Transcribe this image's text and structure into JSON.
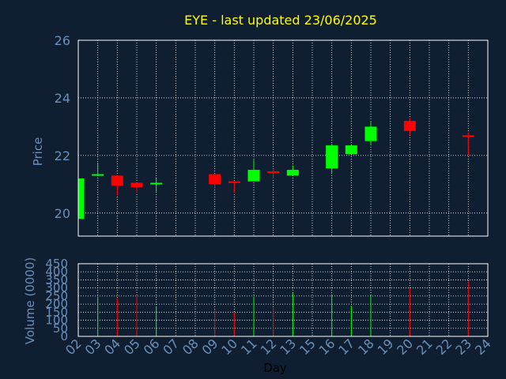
{
  "chart_data": {
    "type": "candlestick",
    "title": "EYE - last updated 23/06/2025",
    "price_panel": {
      "ylabel": "Price",
      "ylim": [
        19.2,
        26
      ],
      "yticks": [
        20,
        22,
        24,
        26
      ],
      "grid": true
    },
    "volume_panel": {
      "ylabel": "Volume (0000)",
      "ylim": [
        0,
        450
      ],
      "yticks": [
        0,
        50,
        100,
        150,
        200,
        250,
        300,
        350,
        400,
        450
      ],
      "grid": true
    },
    "xlabel": "Day",
    "xlim": [
      2,
      24
    ],
    "xticks": [
      "02",
      "03",
      "04",
      "05",
      "06",
      "07",
      "08",
      "09",
      "10",
      "11",
      "12",
      "13",
      "15",
      "16",
      "17",
      "18",
      "19",
      "20",
      "21",
      "22",
      "23",
      "24"
    ],
    "colors": {
      "up": "#00ff00",
      "down": "#ff0000",
      "background": "#0f1e30",
      "grid": "#ffffff",
      "title": "#ffff00",
      "axis_text": "#6b8fb8"
    },
    "candles": [
      {
        "day": "02",
        "open": 19.8,
        "high": 21.2,
        "low": 19.8,
        "close": 21.2,
        "volume": 0
      },
      {
        "day": "03",
        "open": 21.3,
        "high": 21.75,
        "low": 21.3,
        "close": 21.35,
        "volume": 245
      },
      {
        "day": "04",
        "open": 21.3,
        "high": 21.3,
        "low": 20.6,
        "close": 20.95,
        "volume": 240
      },
      {
        "day": "05",
        "open": 21.05,
        "high": 21.05,
        "low": 20.7,
        "close": 20.9,
        "volume": 250
      },
      {
        "day": "06",
        "open": 21.0,
        "high": 21.2,
        "low": 20.75,
        "close": 21.05,
        "volume": 185
      },
      {
        "day": "09",
        "open": 21.35,
        "high": 21.35,
        "low": 20.85,
        "close": 21.0,
        "volume": 165
      },
      {
        "day": "10",
        "open": 21.1,
        "high": 21.1,
        "low": 20.7,
        "close": 21.05,
        "volume": 150
      },
      {
        "day": "11",
        "open": 21.1,
        "high": 21.85,
        "low": 21.1,
        "close": 21.5,
        "volume": 245
      },
      {
        "day": "12",
        "open": 21.45,
        "high": 21.55,
        "low": 21.2,
        "close": 21.4,
        "volume": 175
      },
      {
        "day": "13",
        "open": 21.3,
        "high": 21.65,
        "low": 21.3,
        "close": 21.5,
        "volume": 270
      },
      {
        "day": "16",
        "open": 21.55,
        "high": 22.4,
        "low": 21.4,
        "close": 22.35,
        "volume": 260
      },
      {
        "day": "17",
        "open": 22.05,
        "high": 22.35,
        "low": 22.05,
        "close": 22.35,
        "volume": 190
      },
      {
        "day": "18",
        "open": 22.5,
        "high": 23.2,
        "low": 22.35,
        "close": 23.0,
        "volume": 255
      },
      {
        "day": "20",
        "open": 23.2,
        "high": 23.3,
        "low": 22.7,
        "close": 22.85,
        "volume": 300
      },
      {
        "day": "23",
        "open": 22.7,
        "high": 22.8,
        "low": 22.0,
        "close": 22.65,
        "volume": 340
      }
    ]
  }
}
